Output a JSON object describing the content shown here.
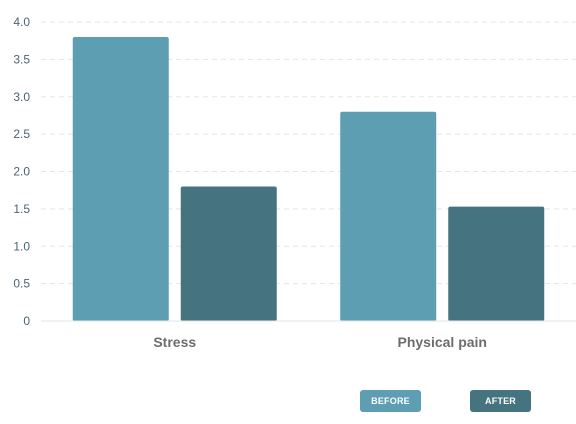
{
  "chart_data": {
    "type": "bar",
    "categories": [
      "Stress",
      "Physical pain"
    ],
    "series": [
      {
        "name": "BEFORE",
        "values": [
          3.8,
          2.8
        ],
        "color": "#5d9eb2"
      },
      {
        "name": "AFTER",
        "values": [
          1.8,
          1.53
        ],
        "color": "#45737f"
      }
    ],
    "ylim": [
      0,
      4
    ],
    "yticks": [
      "0",
      "0.5",
      "1.0",
      "1.5",
      "2.0",
      "2.5",
      "3.0",
      "3.5",
      "4.0"
    ],
    "grid": true,
    "legend_position": "bottom-right"
  }
}
